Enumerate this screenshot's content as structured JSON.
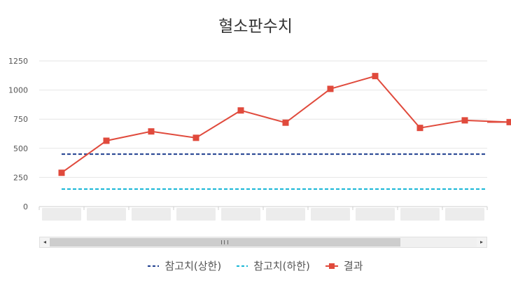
{
  "chart_data": {
    "type": "line",
    "title": "혈소판수치",
    "xlabel": "",
    "ylabel": "",
    "ylim": [
      0,
      1250
    ],
    "yticks": [
      0,
      250,
      500,
      750,
      1000,
      1250
    ],
    "grid": true,
    "legend_placement": "bottom",
    "categories": [
      "",
      "",
      "",
      "",
      "",
      "",
      "",
      "",
      "",
      "",
      ""
    ],
    "series": [
      {
        "name": "참고치(상한)",
        "style": "dashed",
        "color": "#1f3f8f",
        "values": [
          450,
          450,
          450,
          450,
          450,
          450,
          450,
          450,
          450,
          450,
          450
        ]
      },
      {
        "name": "참고치(하한)",
        "style": "dashed",
        "color": "#1ab7d6",
        "values": [
          150,
          150,
          150,
          150,
          150,
          150,
          150,
          150,
          150,
          150,
          150
        ]
      },
      {
        "name": "결과",
        "style": "solid-marker",
        "color": "#e04a3c",
        "values": [
          290,
          565,
          645,
          590,
          825,
          720,
          1010,
          1120,
          675,
          740,
          725
        ]
      }
    ]
  },
  "scrollbar": {
    "left_arrow": "◂",
    "right_arrow": "▸"
  }
}
